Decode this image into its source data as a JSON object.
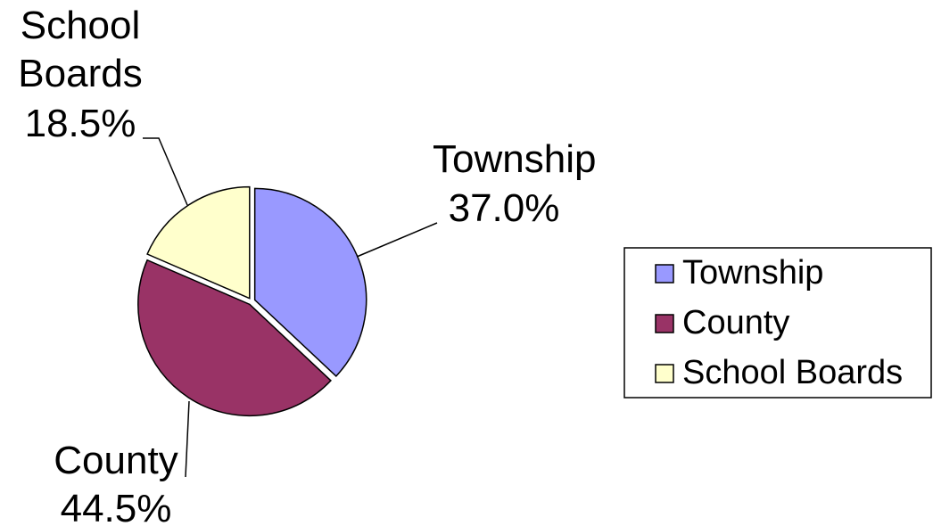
{
  "chart_data": {
    "type": "pie",
    "categories": [
      "Township",
      "County",
      "School Boards"
    ],
    "values": [
      37.0,
      44.5,
      18.5
    ],
    "value_labels": [
      "37.0%",
      "44.5%",
      "18.5%"
    ],
    "colors": [
      "#9999ff",
      "#993366",
      "#ffffcc"
    ],
    "legend": "right"
  }
}
